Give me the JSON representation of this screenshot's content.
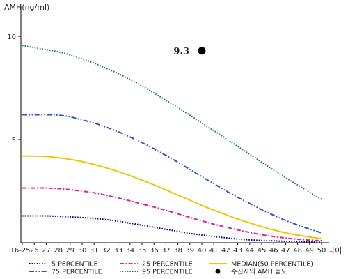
{
  "chart_data": {
    "type": "line",
    "ylabel": "AMH(ng/ml)",
    "xlabel": "나이",
    "ylim": [
      0,
      11
    ],
    "yticks": [
      "5",
      "10"
    ],
    "categories": [
      "16-25",
      "26",
      "27",
      "28",
      "29",
      "30",
      "31",
      "32",
      "33",
      "34",
      "35",
      "36",
      "37",
      "38",
      "39",
      "40",
      "41",
      "42",
      "43",
      "44",
      "45",
      "46",
      "47",
      "48",
      "49",
      "50"
    ],
    "series": [
      {
        "name": "5 PERCENTILE",
        "color": "#000080",
        "style": "dotted",
        "values": [
          1.3,
          1.3,
          1.3,
          1.28,
          1.25,
          1.22,
          1.18,
          1.12,
          1.04,
          0.95,
          0.85,
          0.75,
          0.65,
          0.55,
          0.45,
          0.38,
          0.3,
          0.24,
          0.18,
          0.14,
          0.11,
          0.09,
          0.07,
          0.06,
          0.05,
          0.04
        ]
      },
      {
        "name": "25 PERCENTILE",
        "color": "#e0208a",
        "style": "dashdot",
        "values": [
          2.65,
          2.65,
          2.65,
          2.62,
          2.57,
          2.5,
          2.42,
          2.3,
          2.17,
          2.03,
          1.88,
          1.73,
          1.57,
          1.4,
          1.23,
          1.06,
          0.9,
          0.76,
          0.62,
          0.5,
          0.39,
          0.3,
          0.23,
          0.17,
          0.13,
          0.1
        ]
      },
      {
        "name": "MEDIAN(50 PERCENTILE)",
        "color": "#f5c400",
        "style": "solid",
        "values": [
          4.2,
          4.2,
          4.18,
          4.12,
          4.04,
          3.93,
          3.79,
          3.63,
          3.45,
          3.25,
          3.03,
          2.8,
          2.56,
          2.31,
          2.06,
          1.81,
          1.58,
          1.36,
          1.15,
          0.96,
          0.78,
          0.62,
          0.48,
          0.37,
          0.28,
          0.2
        ]
      },
      {
        "name": "75 PERCENTILE",
        "color": "#3050c0",
        "style": "dashdotdot",
        "values": [
          6.2,
          6.2,
          6.2,
          6.18,
          6.1,
          5.95,
          5.8,
          5.6,
          5.38,
          5.12,
          4.85,
          4.55,
          4.23,
          3.9,
          3.55,
          3.2,
          2.86,
          2.52,
          2.2,
          1.9,
          1.6,
          1.33,
          1.08,
          0.86,
          0.66,
          0.48
        ]
      },
      {
        "name": "95 PERCENTILE",
        "color": "#208040",
        "style": "dotted",
        "values": [
          9.55,
          9.45,
          9.35,
          9.25,
          9.1,
          8.9,
          8.7,
          8.45,
          8.2,
          7.9,
          7.6,
          7.25,
          6.9,
          6.55,
          6.18,
          5.8,
          5.43,
          5.05,
          4.67,
          4.28,
          3.9,
          3.52,
          3.15,
          2.8,
          2.45,
          2.1
        ]
      }
    ],
    "points": [
      {
        "name": "수진자의 AMH 농도",
        "x": "40",
        "y": 9.3,
        "label": "9.3",
        "color": "#000000"
      }
    ],
    "legend_position": "bottom",
    "grid": false
  }
}
